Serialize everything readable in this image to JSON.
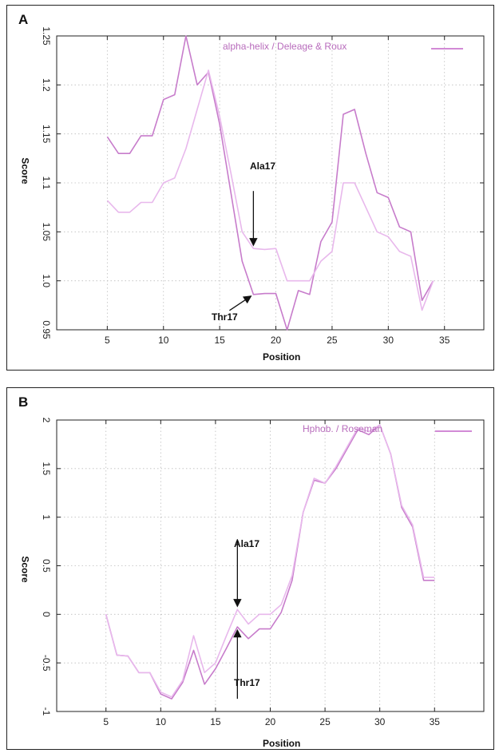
{
  "chart_data": [
    {
      "panel_label": "A",
      "type": "line",
      "xlabel": "Position",
      "ylabel": "Score",
      "xlim": [
        0.5,
        38.5
      ],
      "ylim": [
        0.95,
        1.25
      ],
      "xticks": [
        5,
        10,
        15,
        20,
        25,
        30,
        35
      ],
      "yticks": [
        0.95,
        1.0,
        1.05,
        1.1,
        1.15,
        1.2,
        1.25
      ],
      "ytick_labels": [
        "0.95",
        "1.0",
        "1.05",
        "1.1",
        "1.15",
        "1.2",
        "1.25"
      ],
      "grid": true,
      "legend": {
        "text": "alpha-helix / Deleage & Roux",
        "placement": "top-right",
        "color": "#d28ad6"
      },
      "series": [
        {
          "color": "#c77ccb",
          "x": [
            5,
            6,
            7,
            8,
            9,
            10,
            11,
            12,
            13,
            14,
            15,
            16,
            17,
            18,
            19,
            20,
            21,
            22,
            23,
            24,
            25,
            26,
            27,
            28,
            29,
            30,
            31,
            32,
            33,
            34
          ],
          "y": [
            1.147,
            1.13,
            1.13,
            1.148,
            1.148,
            1.185,
            1.19,
            1.25,
            1.2,
            1.213,
            1.16,
            1.09,
            1.02,
            0.986,
            0.987,
            0.987,
            0.95,
            0.99,
            0.986,
            1.04,
            1.06,
            1.17,
            1.175,
            1.13,
            1.09,
            1.085,
            1.055,
            1.05,
            0.98,
            1.0
          ]
        },
        {
          "color": "#e8b8ec",
          "x": [
            5,
            6,
            7,
            8,
            9,
            10,
            11,
            12,
            13,
            14,
            15,
            16,
            17,
            18,
            19,
            20,
            21,
            22,
            23,
            24,
            25,
            26,
            27,
            28,
            29,
            30,
            31,
            32,
            33,
            34
          ],
          "y": [
            1.082,
            1.07,
            1.07,
            1.08,
            1.08,
            1.1,
            1.105,
            1.135,
            1.175,
            1.215,
            1.168,
            1.11,
            1.05,
            1.033,
            1.032,
            1.033,
            1.0,
            1.0,
            1.0,
            1.02,
            1.03,
            1.1,
            1.1,
            1.075,
            1.05,
            1.045,
            1.03,
            1.025,
            0.97,
            1.0
          ]
        }
      ],
      "annotations": [
        {
          "text": "Ala17",
          "x": 18,
          "y": 1.033,
          "position": "above"
        },
        {
          "text": "Thr17",
          "x": 18,
          "y": 0.986,
          "position": "below-left"
        }
      ]
    },
    {
      "panel_label": "B",
      "type": "line",
      "xlabel": "Position",
      "ylabel": "Score",
      "xlim": [
        0.5,
        39.5
      ],
      "ylim": [
        -1,
        2
      ],
      "xticks": [
        5,
        10,
        15,
        20,
        25,
        30,
        35
      ],
      "yticks": [
        -1,
        -0.5,
        0,
        0.5,
        1,
        1.5,
        2
      ],
      "ytick_labels": [
        "-1",
        "-0.5",
        "0",
        "0.5",
        "1",
        "1.5",
        "2"
      ],
      "grid": true,
      "legend": {
        "text": "Hphob. / Roseman",
        "placement": "top-right",
        "color": "#d28ad6"
      },
      "series": [
        {
          "color": "#c77ccb",
          "x": [
            5,
            6,
            7,
            8,
            9,
            10,
            11,
            12,
            13,
            14,
            15,
            16,
            17,
            18,
            19,
            20,
            21,
            22,
            23,
            24,
            25,
            26,
            27,
            28,
            29,
            30,
            31,
            32,
            33,
            34,
            35
          ],
          "y": [
            0.0,
            -0.42,
            -0.43,
            -0.6,
            -0.6,
            -0.82,
            -0.87,
            -0.7,
            -0.37,
            -0.72,
            -0.56,
            -0.35,
            -0.13,
            -0.25,
            -0.15,
            -0.15,
            0.02,
            0.35,
            1.05,
            1.38,
            1.35,
            1.5,
            1.7,
            1.9,
            1.85,
            1.95,
            1.65,
            1.1,
            0.9,
            0.35,
            0.35
          ]
        },
        {
          "color": "#e8b8ec",
          "x": [
            5,
            6,
            7,
            8,
            9,
            10,
            11,
            12,
            13,
            14,
            15,
            16,
            17,
            18,
            19,
            20,
            21,
            22,
            23,
            24,
            25,
            26,
            27,
            28,
            29,
            30,
            31,
            32,
            33,
            34,
            35
          ],
          "y": [
            0.0,
            -0.42,
            -0.43,
            -0.6,
            -0.6,
            -0.8,
            -0.85,
            -0.68,
            -0.22,
            -0.6,
            -0.5,
            -0.22,
            0.05,
            -0.1,
            0.0,
            0.0,
            0.1,
            0.4,
            1.05,
            1.4,
            1.35,
            1.52,
            1.72,
            1.92,
            1.88,
            1.95,
            1.65,
            1.12,
            0.92,
            0.38,
            0.38
          ]
        }
      ],
      "annotations": [
        {
          "text": "Ala17",
          "x": 17,
          "y": 0.05,
          "position": "above"
        },
        {
          "text": "Thr17",
          "x": 17,
          "y": -0.13,
          "position": "below"
        }
      ]
    }
  ]
}
